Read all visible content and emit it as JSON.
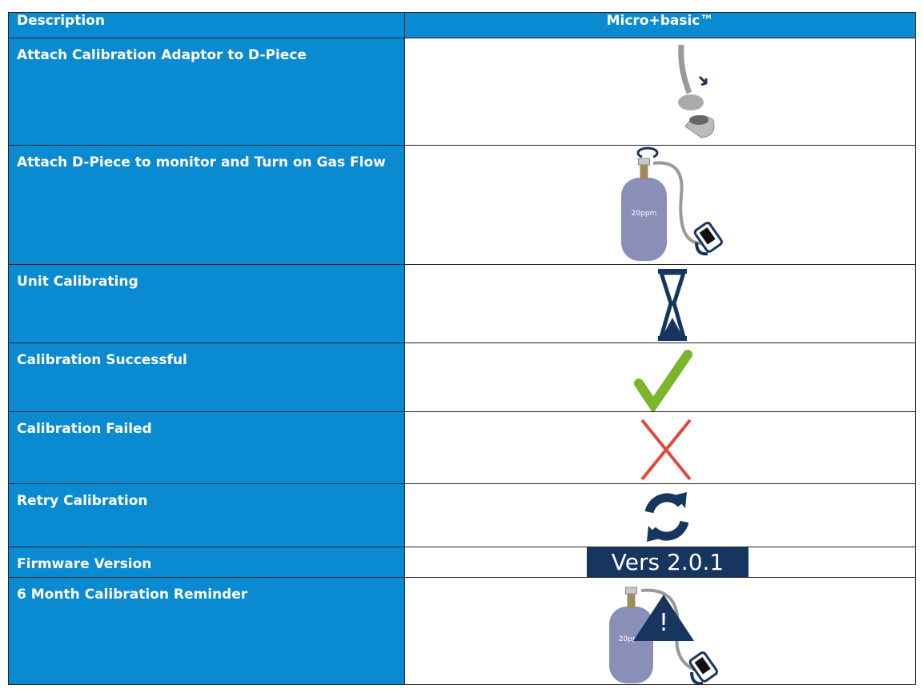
{
  "table": {
    "header": [
      "Description",
      "Micro+basic™"
    ],
    "rows": [
      {
        "description": "Attach Calibration Adaptor to D-Piece"
      },
      {
        "description": "Attach D-Piece to monitor and Turn on Gas Flow",
        "icon_text": "20ppm"
      },
      {
        "description": "Unit Calibrating"
      },
      {
        "description": "Calibration Successful"
      },
      {
        "description": "Calibration Failed"
      },
      {
        "description": "Retry Calibration"
      },
      {
        "description": "Firmware Version",
        "icon_text": "Vers 2.0.1"
      },
      {
        "description": "6 Month Calibration Reminder",
        "icon_text": "20ppm"
      }
    ]
  }
}
